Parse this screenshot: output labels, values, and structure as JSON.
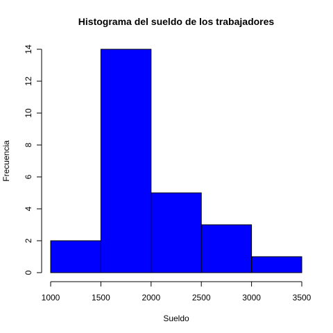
{
  "chart_data": {
    "type": "bar",
    "title": "Histograma del sueldo de los trabajadores",
    "xlabel": "Sueldo",
    "ylabel": "Frecuencia",
    "bins": [
      {
        "from": 1000,
        "to": 1500,
        "count": 2
      },
      {
        "from": 1500,
        "to": 2000,
        "count": 14
      },
      {
        "from": 2000,
        "to": 2500,
        "count": 5
      },
      {
        "from": 2500,
        "to": 3000,
        "count": 3
      },
      {
        "from": 3000,
        "to": 3500,
        "count": 1
      }
    ],
    "xlim": [
      1000,
      3500
    ],
    "ylim": [
      0,
      14
    ],
    "x_ticks": [
      1000,
      1500,
      2000,
      2500,
      3000,
      3500
    ],
    "y_ticks": [
      0,
      2,
      4,
      6,
      8,
      10,
      12,
      14
    ],
    "bar_color": "#0000ff",
    "edge_color": "#000000",
    "grid": false,
    "legend": "none"
  }
}
